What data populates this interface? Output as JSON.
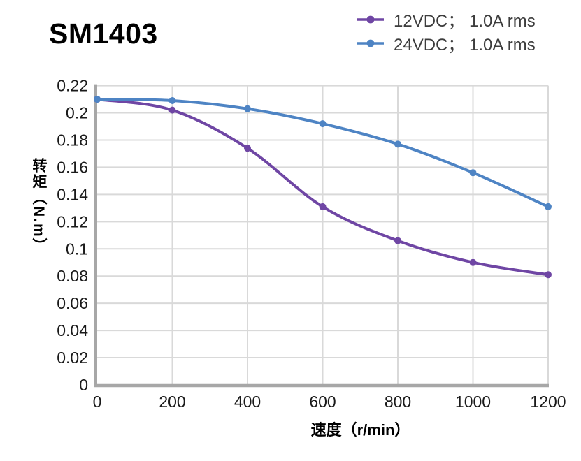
{
  "page": {
    "title": "SM1403"
  },
  "legend": {
    "items": [
      {
        "label": "12VDC； 1.0A rms"
      },
      {
        "label": "24VDC； 1.0A rms"
      }
    ]
  },
  "chart_data": {
    "type": "line",
    "title": "SM1403",
    "x": [
      0,
      200,
      400,
      600,
      800,
      1000,
      1200
    ],
    "series": [
      {
        "name": "12VDC； 1.0A rms",
        "color": "#6f46a4",
        "values": [
          0.21,
          0.202,
          0.174,
          0.131,
          0.106,
          0.09,
          0.081
        ]
      },
      {
        "name": "24VDC； 1.0A rms",
        "color": "#4e84c4",
        "values": [
          0.21,
          0.209,
          0.203,
          0.192,
          0.177,
          0.156,
          0.131
        ]
      }
    ],
    "xlabel": "速度（r/min）",
    "ylabel": "转矩（N.m）",
    "xlim": [
      0,
      1200
    ],
    "ylim": [
      0,
      0.22
    ],
    "xticks": [
      0,
      200,
      400,
      600,
      800,
      1000,
      1200
    ],
    "yticks": [
      0,
      0.02,
      0.04,
      0.06,
      0.08,
      0.1,
      0.12,
      0.14,
      0.16,
      0.18,
      0.2,
      0.22
    ],
    "grid": true,
    "smooth_lines": true,
    "legend_position": "top-right",
    "colors": {
      "grid": "#d9d9d9",
      "axis": "#a7a7a7",
      "tick_text": "#1a1a1a",
      "legend_text": "#3d3d3d",
      "title_text": "#000000"
    }
  }
}
